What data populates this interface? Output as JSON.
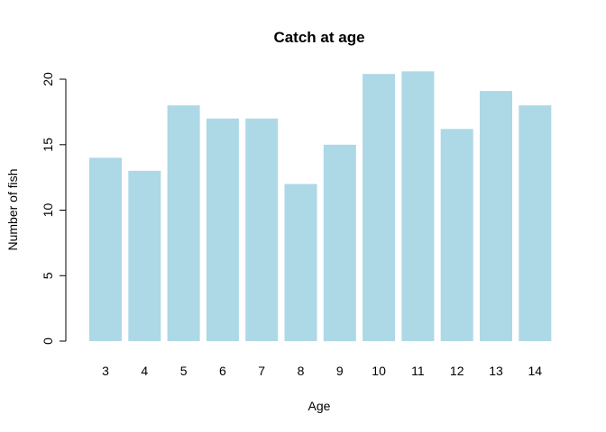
{
  "chart_data": {
    "type": "bar",
    "title": "Catch at age",
    "xlabel": "Age",
    "ylabel": "Number of fish",
    "categories": [
      "3",
      "4",
      "5",
      "6",
      "7",
      "8",
      "9",
      "10",
      "11",
      "12",
      "13",
      "14"
    ],
    "values": [
      14,
      13,
      18,
      17,
      17,
      12,
      15,
      20.4,
      20.6,
      16.2,
      19.1,
      18
    ],
    "ylim": [
      0,
      20
    ],
    "yticks": [
      "0",
      "5",
      "10",
      "15",
      "20"
    ],
    "grid": false,
    "legend": "none",
    "bar_color": "#ADD8E6"
  }
}
